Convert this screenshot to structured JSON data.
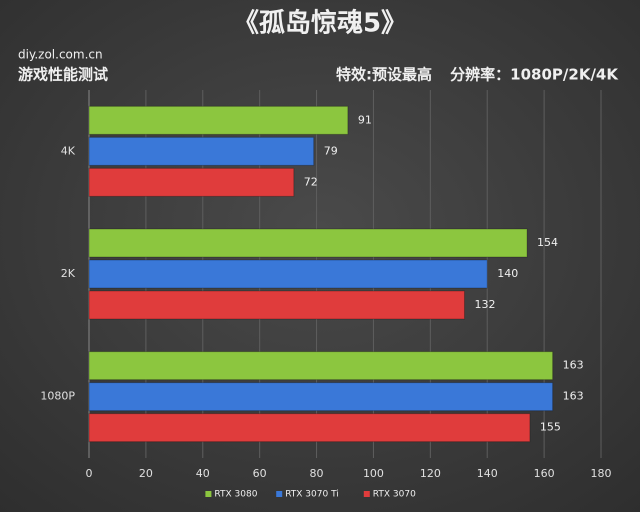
{
  "chart_data": {
    "type": "bar",
    "orientation": "horizontal",
    "title": "《孤岛惊魂5》",
    "source": "diy.zol.com.cn",
    "subtitle": "游戏性能测试",
    "annotations": [
      "特效:预设最高",
      "分辨率：1080P/2K/4K"
    ],
    "categories": [
      "4K",
      "2K",
      "1080P"
    ],
    "series": [
      {
        "name": "RTX 3080",
        "color": "#8cc63f",
        "values": [
          91,
          154,
          163
        ]
      },
      {
        "name": "RTX 3070 Ti",
        "color": "#3a78d8",
        "values": [
          79,
          140,
          163
        ]
      },
      {
        "name": "RTX 3070",
        "color": "#e03c3c",
        "values": [
          72,
          132,
          155
        ]
      }
    ],
    "xlim": [
      0,
      180
    ],
    "xticks": [
      0,
      20,
      40,
      60,
      80,
      100,
      120,
      140,
      160,
      180
    ],
    "grid": true,
    "legend": "bottom"
  }
}
